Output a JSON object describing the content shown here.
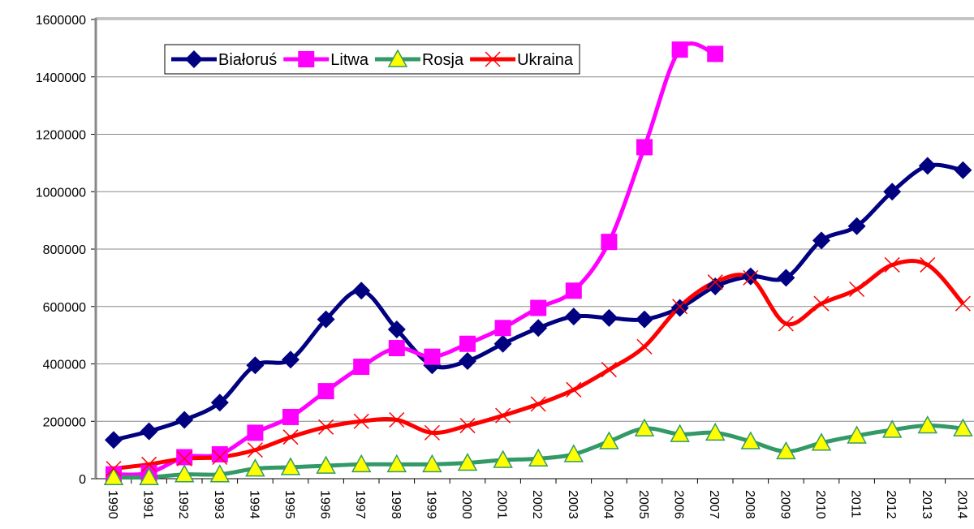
{
  "chart_data": {
    "type": "line",
    "categories": [
      "1990",
      "1991",
      "1992",
      "1993",
      "1994",
      "1995",
      "1996",
      "1997",
      "1998",
      "1999",
      "2000",
      "2001",
      "2002",
      "2003",
      "2004",
      "2005",
      "2006",
      "2007",
      "2008",
      "2009",
      "2010",
      "2011",
      "2012",
      "2013",
      "2014"
    ],
    "series": [
      {
        "name": "Białoruś",
        "color": "#000080",
        "marker": "diamond",
        "values": [
          135000,
          165000,
          205000,
          265000,
          395000,
          415000,
          555000,
          655000,
          520000,
          395000,
          410000,
          470000,
          525000,
          565000,
          560000,
          555000,
          595000,
          670000,
          705000,
          700000,
          830000,
          880000,
          1000000,
          1090000,
          1075000
        ]
      },
      {
        "name": "Litwa",
        "color": "#ff00ff",
        "marker": "square",
        "values": [
          15000,
          20000,
          75000,
          85000,
          160000,
          215000,
          305000,
          390000,
          455000,
          425000,
          470000,
          525000,
          595000,
          655000,
          825000,
          1155000,
          1495000,
          1480000,
          null,
          null,
          null,
          null,
          null,
          null,
          null
        ]
      },
      {
        "name": "Rosja",
        "color": "#339966",
        "marker": "triangle",
        "values": [
          5000,
          5000,
          15000,
          15000,
          35000,
          40000,
          45000,
          50000,
          50000,
          50000,
          55000,
          65000,
          70000,
          85000,
          130000,
          175000,
          155000,
          160000,
          130000,
          95000,
          125000,
          150000,
          170000,
          185000,
          175000
        ]
      },
      {
        "name": "Ukraina",
        "color": "#ff0000",
        "marker": "x",
        "values": [
          35000,
          50000,
          70000,
          75000,
          100000,
          145000,
          180000,
          200000,
          205000,
          160000,
          185000,
          220000,
          260000,
          310000,
          380000,
          460000,
          600000,
          685000,
          700000,
          540000,
          610000,
          660000,
          745000,
          745000,
          610000
        ]
      }
    ],
    "ylim": [
      0,
      1600000
    ],
    "yticks": [
      0,
      200000,
      400000,
      600000,
      800000,
      1000000,
      1200000,
      1400000,
      1600000
    ],
    "grid": true,
    "smooth": true,
    "legend": "top-left"
  }
}
